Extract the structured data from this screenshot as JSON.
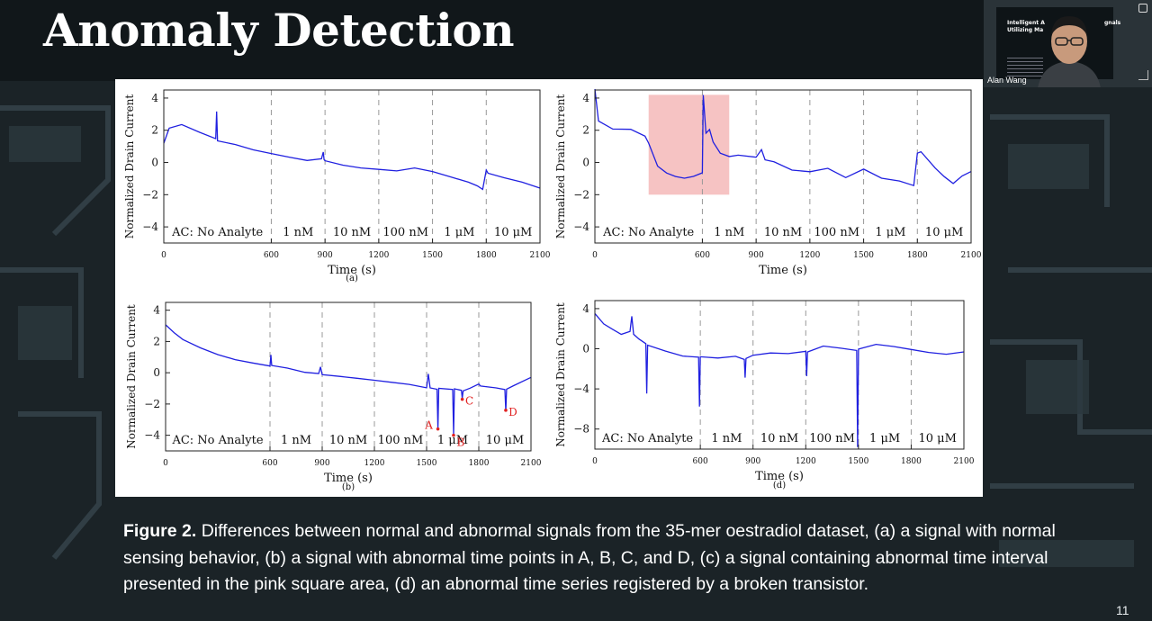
{
  "slide": {
    "title": "Anomaly Detection",
    "page_number": "11"
  },
  "caption": {
    "label": "Figure 2.",
    "text": " Differences between normal and abnormal signals from the 35-mer oestradiol dataset, (a) a signal with normal sensing behavior, (b) a signal with abnormal time points in A, B, C, and D, (c) a signal containing abnormal time interval presented in the pink square area, (d) an abnormal time series registered by a broken transistor."
  },
  "video": {
    "presenter_name": "Alan Wang",
    "thumb_title_a": "Intelligent A",
    "thumb_title_b": "Utilizing Ma",
    "thumb_title_c": "gnals"
  },
  "colors": {
    "signal": "#2020e0",
    "anomaly_marker": "#e02020",
    "highlight": "#f5b8b8"
  },
  "chart_data": [
    {
      "type": "line",
      "panel_label": "(a)",
      "xlabel": "Time (s)",
      "ylabel": "Normalized Drain Current",
      "xlim": [
        0,
        2100
      ],
      "ylim": [
        -5,
        4.5
      ],
      "x_ticks": [
        0,
        600,
        900,
        1200,
        1500,
        1800,
        2100
      ],
      "y_ticks": [
        4,
        2,
        0,
        -2,
        -4
      ],
      "phase_boundaries": [
        600,
        900,
        1200,
        1500,
        1800
      ],
      "phase_labels": [
        "AC: No Analyte",
        "1 nM",
        "10 nM",
        "100 nM",
        "1 μM",
        "10 μM"
      ],
      "series": [
        {
          "x": [
            0,
            30,
            100,
            200,
            290,
            295,
            300,
            400,
            500,
            600,
            700,
            800,
            880,
            890,
            895,
            900,
            1000,
            1100,
            1200,
            1300,
            1400,
            1500,
            1600,
            1700,
            1750,
            1780,
            1800,
            1810,
            1900,
            2000,
            2100
          ],
          "y": [
            1.2,
            2.1,
            2.3,
            1.8,
            1.4,
            3.1,
            1.3,
            1.1,
            0.8,
            0.6,
            0.4,
            0.2,
            0.3,
            0.7,
            0.2,
            0.1,
            -0.2,
            -0.4,
            -0.5,
            -0.6,
            -0.4,
            -0.6,
            -0.9,
            -1.2,
            -1.4,
            -1.6,
            -0.4,
            -0.6,
            -0.9,
            -1.2,
            -1.6
          ]
        }
      ],
      "annotations": []
    },
    {
      "type": "line",
      "panel_label": "",
      "xlabel": "Time (s)",
      "ylabel": "Normalized Drain Current",
      "xlim": [
        0,
        2100
      ],
      "ylim": [
        -5,
        4.5
      ],
      "x_ticks": [
        0,
        600,
        900,
        1200,
        1500,
        1800,
        2100
      ],
      "y_ticks": [
        4,
        2,
        0,
        -2,
        -4
      ],
      "phase_boundaries": [
        600,
        900,
        1200,
        1500,
        1800
      ],
      "phase_labels": [
        "AC: No Analyte",
        "1 nM",
        "10 nM",
        "100 nM",
        "1 μM",
        "10 μM"
      ],
      "highlight": {
        "x": [
          300,
          750
        ],
        "y": [
          -2,
          4.2
        ]
      },
      "series": [
        {
          "x": [
            0,
            20,
            100,
            200,
            280,
            300,
            350,
            400,
            450,
            500,
            550,
            600,
            605,
            620,
            640,
            660,
            700,
            750,
            800,
            900,
            930,
            950,
            1000,
            1100,
            1200,
            1300,
            1400,
            1500,
            1600,
            1700,
            1780,
            1800,
            1820,
            1900,
            1950,
            2000,
            2050,
            2100
          ],
          "y": [
            4.5,
            2.5,
            2.0,
            2.0,
            1.6,
            1.2,
            -0.2,
            -0.6,
            -0.8,
            -0.9,
            -0.8,
            -0.6,
            4.2,
            1.8,
            2.0,
            1.2,
            0.5,
            0.3,
            0.4,
            0.3,
            0.8,
            0.2,
            0.1,
            -0.4,
            -0.5,
            -0.3,
            -0.9,
            -0.4,
            -1.0,
            -1.2,
            -1.5,
            0.5,
            0.6,
            -0.4,
            -0.9,
            -1.3,
            -0.8,
            -0.5
          ]
        }
      ],
      "annotations": []
    },
    {
      "type": "line",
      "panel_label": "(b)",
      "xlabel": "Time (s)",
      "ylabel": "Normalized Drain Current",
      "xlim": [
        0,
        2100
      ],
      "ylim": [
        -5,
        4.5
      ],
      "x_ticks": [
        0,
        600,
        900,
        1200,
        1500,
        1800,
        2100
      ],
      "y_ticks": [
        4,
        2,
        0,
        -2,
        -4
      ],
      "phase_boundaries": [
        600,
        900,
        1200,
        1500,
        1800
      ],
      "phase_labels": [
        "AC: No Analyte",
        "1 nM",
        "10 nM",
        "100 nM",
        "1 μM",
        "10 μM"
      ],
      "series": [
        {
          "x": [
            0,
            50,
            100,
            200,
            300,
            400,
            500,
            600,
            605,
            610,
            700,
            800,
            880,
            890,
            900,
            1000,
            1100,
            1200,
            1300,
            1400,
            1500,
            1510,
            1520,
            1560,
            1565,
            1570,
            1650,
            1655,
            1660,
            1700,
            1705,
            1710,
            1750,
            1800,
            1810,
            1900,
            1950,
            1955,
            1960,
            2000,
            2100
          ],
          "y": [
            3.0,
            2.5,
            2.1,
            1.6,
            1.2,
            0.9,
            0.7,
            0.5,
            1.2,
            0.5,
            0.3,
            0.0,
            -0.1,
            0.3,
            -0.2,
            -0.3,
            -0.4,
            -0.5,
            -0.6,
            -0.7,
            -0.9,
            0.0,
            -0.9,
            -1.0,
            -3.6,
            -1.0,
            -1.1,
            -4.0,
            -1.1,
            -1.2,
            -1.7,
            -1.2,
            -1.0,
            -0.7,
            -0.8,
            -0.9,
            -1.0,
            -2.4,
            -1.0,
            -0.8,
            -0.3
          ]
        }
      ],
      "annotations": [
        {
          "label": "A",
          "x": 1565,
          "y": -3.6
        },
        {
          "label": "B",
          "x": 1655,
          "y": -4.0
        },
        {
          "label": "C",
          "x": 1705,
          "y": -1.7
        },
        {
          "label": "D",
          "x": 1955,
          "y": -2.4
        }
      ]
    },
    {
      "type": "line",
      "panel_label": "(d)",
      "xlabel": "Time (s)",
      "ylabel": "Normalized Drain Current",
      "xlim": [
        0,
        2100
      ],
      "ylim": [
        -10,
        4.8
      ],
      "x_ticks": [
        0,
        600,
        900,
        1200,
        1500,
        1800,
        2100
      ],
      "y_ticks": [
        4,
        0,
        -4,
        -8
      ],
      "phase_boundaries": [
        600,
        900,
        1200,
        1500,
        1800
      ],
      "phase_labels": [
        "AC: No Analyte",
        "1 nM",
        "10 nM",
        "100 nM",
        "1 μM",
        "10 μM"
      ],
      "series": [
        {
          "x": [
            0,
            50,
            100,
            150,
            200,
            210,
            220,
            250,
            290,
            295,
            300,
            400,
            500,
            590,
            595,
            600,
            700,
            800,
            850,
            855,
            860,
            900,
            1000,
            1100,
            1200,
            1205,
            1210,
            1300,
            1400,
            1490,
            1495,
            1500,
            1600,
            1700,
            1800,
            1900,
            2000,
            2100
          ],
          "y": [
            3.5,
            2.5,
            2.0,
            1.5,
            1.8,
            3.3,
            1.5,
            1.0,
            0.5,
            -4.5,
            0.3,
            -0.3,
            -0.8,
            -0.9,
            -5.8,
            -0.8,
            -0.9,
            -0.7,
            -1.0,
            -2.8,
            -0.9,
            -0.6,
            -0.4,
            -0.5,
            -0.3,
            -2.8,
            -0.4,
            0.2,
            0.0,
            -0.2,
            -9.8,
            0.0,
            0.5,
            0.3,
            0.0,
            -0.3,
            -0.5,
            -0.3
          ]
        }
      ],
      "annotations": []
    }
  ]
}
